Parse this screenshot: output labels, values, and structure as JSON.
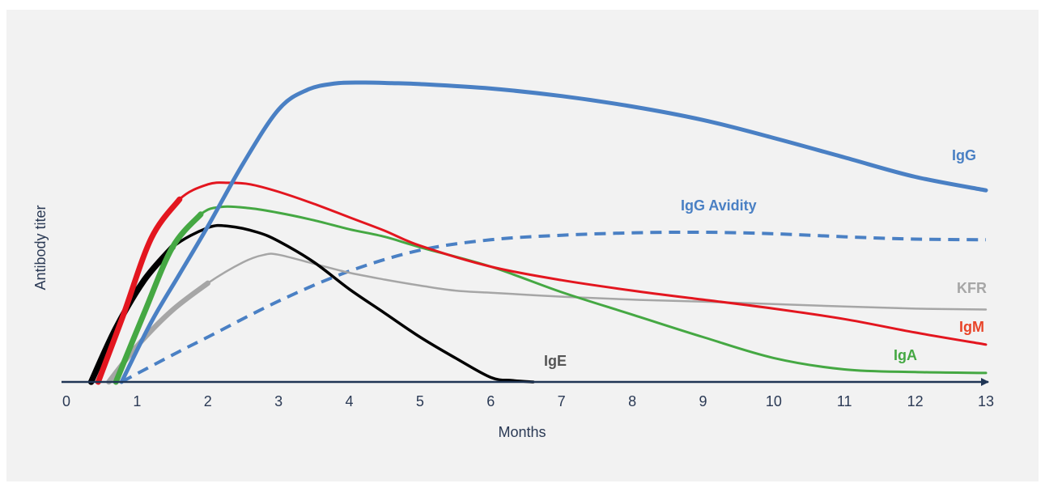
{
  "chart_data": {
    "type": "line",
    "title": "",
    "xlabel": "Months",
    "ylabel": "Antibody titer",
    "xlim": [
      0,
      13
    ],
    "ylim": [
      0,
      100
    ],
    "x_ticks": [
      "0",
      "1",
      "2",
      "3",
      "4",
      "5",
      "6",
      "7",
      "8",
      "9",
      "10",
      "11",
      "12",
      "13"
    ],
    "grid": false,
    "legend": "inline labels at line ends",
    "series": [
      {
        "name": "IgG",
        "color": "#4a80c4",
        "style": "solid",
        "x": [
          0.78,
          1.2,
          1.6,
          2.0,
          2.5,
          3.0,
          3.4,
          3.8,
          4.2,
          4.6,
          5.0,
          6.0,
          7.0,
          8.0,
          9.0,
          10.0,
          11.0,
          12.0,
          13.0
        ],
        "y": [
          0,
          20,
          36,
          52,
          73,
          91,
          97.5,
          99.7,
          100,
          99.8,
          99.5,
          98,
          95.5,
          92,
          87.5,
          81.5,
          75,
          68.5,
          64
        ]
      },
      {
        "name": "IgG Avidity",
        "color": "#4a80c4",
        "style": "dashed",
        "x": [
          0.78,
          1.5,
          2.0,
          3.0,
          4.0,
          5.0,
          6.0,
          7.0,
          8.0,
          9.0,
          10.0,
          11.0,
          12.0,
          13.0
        ],
        "y": [
          0,
          9,
          15,
          27,
          37,
          44,
          47.5,
          49,
          49.8,
          50,
          49.5,
          48.5,
          47.7,
          47.5
        ]
      },
      {
        "name": "IgM",
        "color": "#e3161f",
        "style": "solid",
        "x": [
          0.45,
          0.8,
          1.2,
          1.6,
          2.0,
          2.3,
          2.6,
          3.0,
          3.5,
          4.0,
          4.5,
          5.0,
          6.0,
          7.0,
          8.0,
          9.0,
          10.0,
          11.0,
          12.0,
          13.0
        ],
        "y": [
          0,
          22,
          48,
          61,
          66,
          66.5,
          66,
          63.5,
          59.5,
          55,
          50.5,
          45.5,
          38.5,
          34,
          30.5,
          27.5,
          24.5,
          21,
          16.5,
          12.5
        ]
      },
      {
        "name": "IgA",
        "color": "#45a843",
        "style": "solid",
        "x": [
          0.7,
          1.1,
          1.5,
          1.9,
          2.2,
          2.6,
          3.0,
          3.5,
          4.0,
          4.5,
          5.0,
          6.0,
          7.0,
          8.0,
          9.0,
          10.0,
          11.0,
          12.0,
          13.0
        ],
        "y": [
          0,
          23,
          45,
          56,
          58.5,
          58,
          56.5,
          54,
          51,
          48.5,
          45,
          38.5,
          30,
          22.5,
          15,
          8,
          4.2,
          3.3,
          3
        ]
      },
      {
        "name": "IgE",
        "color": "#000000",
        "style": "solid",
        "x": [
          0.35,
          0.7,
          1.1,
          1.5,
          2.0,
          2.3,
          2.7,
          3.0,
          3.5,
          4.0,
          4.5,
          5.0,
          5.5,
          6.0,
          6.3,
          6.6
        ],
        "y": [
          0,
          18,
          34,
          45,
          51.5,
          52,
          50,
          47,
          40,
          31,
          23,
          15,
          8,
          1.5,
          0.5,
          0
        ]
      },
      {
        "name": "KFR",
        "color": "#a6a6a6",
        "style": "solid",
        "x": [
          0.6,
          1.0,
          1.5,
          2.0,
          2.5,
          2.8,
          3.0,
          3.5,
          4.0,
          4.5,
          5.0,
          5.5,
          6.0,
          7.0,
          8.0,
          9.0,
          10.0,
          11.0,
          12.0,
          13.0
        ],
        "y": [
          0,
          12,
          24,
          33,
          40,
          42.5,
          42.5,
          39.5,
          36.5,
          34.2,
          32.2,
          30.5,
          29.8,
          28.5,
          27.5,
          26.8,
          26,
          25.2,
          24.5,
          24.2
        ]
      }
    ]
  }
}
